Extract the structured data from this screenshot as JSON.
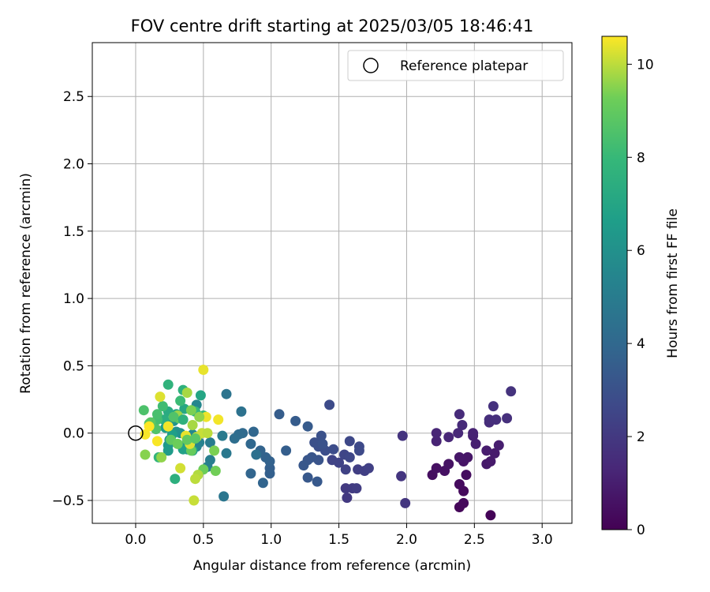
{
  "chart_data": {
    "type": "scatter",
    "title": "FOV centre drift starting at 2025/03/05 18:46:41",
    "xlabel": "Angular distance from reference (arcmin)",
    "ylabel": "Rotation from reference (arcmin)",
    "xlim": [
      -0.32,
      3.22
    ],
    "ylim": [
      -0.67,
      2.9
    ],
    "xticks": [
      0.0,
      0.5,
      1.0,
      1.5,
      2.0,
      2.5,
      3.0
    ],
    "xtick_labels": [
      "0.0",
      "0.5",
      "1.0",
      "1.5",
      "2.0",
      "2.5",
      "3.0"
    ],
    "yticks": [
      -0.5,
      0.0,
      0.5,
      1.0,
      1.5,
      2.0,
      2.5
    ],
    "ytick_labels": [
      "−0.5",
      "0.0",
      "0.5",
      "1.0",
      "1.5",
      "2.0",
      "2.5"
    ],
    "grid": true,
    "legend": {
      "placement": "top-right",
      "entries": [
        "Reference platepar"
      ]
    },
    "colorbar": {
      "label": "Hours from first FF file",
      "colormap": "viridis",
      "range": [
        0,
        10.6
      ],
      "ticks": [
        0,
        2,
        4,
        6,
        8,
        10
      ],
      "tick_labels": [
        "0",
        "2",
        "4",
        "6",
        "8",
        "10"
      ]
    },
    "reference": {
      "x": 0.0,
      "y": 0.0
    },
    "points": [
      [
        2.62,
        -0.61,
        0.1
      ],
      [
        2.39,
        -0.55,
        0.2
      ],
      [
        2.42,
        -0.52,
        0.25
      ],
      [
        2.42,
        -0.43,
        0.3
      ],
      [
        2.39,
        -0.38,
        0.35
      ],
      [
        2.44,
        -0.31,
        0.4
      ],
      [
        2.19,
        -0.31,
        0.45
      ],
      [
        2.22,
        -0.26,
        0.5
      ],
      [
        2.28,
        -0.28,
        0.55
      ],
      [
        2.31,
        -0.23,
        0.6
      ],
      [
        2.42,
        -0.21,
        0.65
      ],
      [
        2.45,
        -0.18,
        0.7
      ],
      [
        2.39,
        -0.18,
        0.75
      ],
      [
        2.59,
        -0.23,
        0.8
      ],
      [
        2.62,
        -0.21,
        0.85
      ],
      [
        2.65,
        -0.15,
        0.9
      ],
      [
        2.59,
        -0.13,
        0.95
      ],
      [
        2.68,
        -0.09,
        1.0
      ],
      [
        2.51,
        -0.08,
        1.05
      ],
      [
        2.49,
        -0.02,
        1.1
      ],
      [
        2.49,
        0.0,
        1.15
      ],
      [
        2.22,
        -0.06,
        1.2
      ],
      [
        2.22,
        0.0,
        1.25
      ],
      [
        2.31,
        -0.03,
        1.3
      ],
      [
        2.38,
        0.0,
        1.35
      ],
      [
        2.41,
        0.06,
        1.4
      ],
      [
        2.39,
        0.14,
        1.45
      ],
      [
        2.61,
        0.08,
        1.5
      ],
      [
        2.61,
        0.1,
        1.55
      ],
      [
        2.66,
        0.1,
        1.6
      ],
      [
        2.74,
        0.11,
        1.65
      ],
      [
        2.64,
        0.2,
        1.7
      ],
      [
        2.77,
        0.31,
        1.75
      ],
      [
        1.97,
        -0.02,
        1.8
      ],
      [
        1.96,
        -0.32,
        1.85
      ],
      [
        1.99,
        -0.52,
        1.9
      ],
      [
        1.56,
        -0.48,
        2.0
      ],
      [
        1.55,
        -0.41,
        2.05
      ],
      [
        1.6,
        -0.41,
        2.1
      ],
      [
        1.63,
        -0.41,
        2.15
      ],
      [
        1.64,
        -0.27,
        2.2
      ],
      [
        1.69,
        -0.28,
        2.25
      ],
      [
        1.72,
        -0.26,
        2.3
      ],
      [
        1.55,
        -0.27,
        2.35
      ],
      [
        1.5,
        -0.22,
        2.4
      ],
      [
        1.45,
        -0.2,
        2.45
      ],
      [
        1.54,
        -0.16,
        2.5
      ],
      [
        1.58,
        -0.18,
        2.55
      ],
      [
        1.58,
        -0.06,
        2.6
      ],
      [
        1.65,
        -0.1,
        2.65
      ],
      [
        1.65,
        -0.13,
        2.7
      ],
      [
        1.43,
        0.21,
        2.75
      ],
      [
        1.46,
        -0.12,
        2.8
      ],
      [
        1.4,
        -0.13,
        2.85
      ],
      [
        1.35,
        -0.1,
        2.9
      ],
      [
        1.32,
        -0.07,
        2.95
      ],
      [
        1.37,
        -0.02,
        3.0
      ],
      [
        1.38,
        -0.08,
        3.05
      ],
      [
        1.35,
        -0.2,
        3.1
      ],
      [
        1.3,
        -0.18,
        3.15
      ],
      [
        1.27,
        -0.2,
        3.2
      ],
      [
        1.24,
        -0.24,
        3.25
      ],
      [
        1.27,
        -0.33,
        3.3
      ],
      [
        1.34,
        -0.36,
        3.35
      ],
      [
        1.27,
        0.05,
        3.4
      ],
      [
        1.18,
        0.09,
        3.45
      ],
      [
        1.06,
        0.14,
        3.5
      ],
      [
        1.11,
        -0.13,
        3.55
      ],
      [
        0.99,
        -0.26,
        3.6
      ],
      [
        0.99,
        -0.3,
        3.65
      ],
      [
        0.99,
        -0.21,
        3.7
      ],
      [
        0.96,
        -0.18,
        3.75
      ],
      [
        0.92,
        -0.13,
        3.8
      ],
      [
        0.94,
        -0.37,
        3.85
      ],
      [
        0.85,
        -0.3,
        3.9
      ],
      [
        0.87,
        0.01,
        3.95
      ],
      [
        0.85,
        -0.08,
        4.0
      ],
      [
        0.79,
        0.0,
        4.1
      ],
      [
        0.76,
        -0.01,
        4.2
      ],
      [
        0.73,
        -0.04,
        4.3
      ],
      [
        0.89,
        -0.16,
        4.4
      ],
      [
        0.78,
        0.16,
        4.5
      ],
      [
        0.67,
        0.29,
        4.6
      ],
      [
        0.65,
        -0.47,
        4.7
      ],
      [
        0.67,
        -0.15,
        4.8
      ],
      [
        0.64,
        -0.02,
        4.9
      ],
      [
        0.55,
        -0.07,
        5.0
      ],
      [
        0.55,
        -0.2,
        5.1
      ],
      [
        0.53,
        -0.25,
        5.2
      ],
      [
        0.47,
        -0.07,
        5.3
      ],
      [
        0.45,
        -0.1,
        5.4
      ],
      [
        0.45,
        0.21,
        5.5
      ],
      [
        0.42,
        -0.01,
        5.6
      ],
      [
        0.4,
        -0.05,
        5.7
      ],
      [
        0.38,
        -0.12,
        5.8
      ],
      [
        0.35,
        -0.1,
        5.9
      ],
      [
        0.33,
        0.0,
        6.0
      ],
      [
        0.3,
        0.01,
        6.1
      ],
      [
        0.28,
        0.09,
        6.2
      ],
      [
        0.25,
        -0.05,
        6.3
      ],
      [
        0.24,
        -0.09,
        6.4
      ],
      [
        0.24,
        -0.13,
        6.5
      ],
      [
        0.22,
        0.04,
        6.6
      ],
      [
        0.27,
        -0.01,
        6.7
      ],
      [
        0.35,
        -0.12,
        6.8
      ],
      [
        0.42,
        -0.13,
        6.9
      ],
      [
        0.48,
        0.28,
        7.0
      ],
      [
        0.36,
        0.18,
        7.1
      ],
      [
        0.3,
        0.14,
        7.2
      ],
      [
        0.24,
        0.16,
        7.3
      ],
      [
        0.21,
        0.1,
        7.4
      ],
      [
        0.29,
        -0.34,
        7.5
      ],
      [
        0.35,
        0.32,
        7.6
      ],
      [
        0.24,
        0.36,
        7.7
      ],
      [
        0.17,
        -0.18,
        7.8
      ],
      [
        0.44,
        0.16,
        7.9
      ],
      [
        0.5,
        0.13,
        8.0
      ],
      [
        0.33,
        0.24,
        8.1
      ],
      [
        0.2,
        0.2,
        8.2
      ],
      [
        0.16,
        0.1,
        8.3
      ],
      [
        0.16,
        0.14,
        8.4
      ],
      [
        0.06,
        0.17,
        8.5
      ],
      [
        0.15,
        0.03,
        8.6
      ],
      [
        0.1,
        0.07,
        8.7
      ],
      [
        0.11,
        0.08,
        8.8
      ],
      [
        0.32,
        0.11,
        8.9
      ],
      [
        0.26,
        -0.05,
        9.0
      ],
      [
        0.41,
        -0.13,
        9.1
      ],
      [
        0.5,
        -0.27,
        9.2
      ],
      [
        0.59,
        -0.28,
        9.3
      ],
      [
        0.58,
        -0.13,
        9.4
      ],
      [
        0.07,
        -0.16,
        9.5
      ],
      [
        0.19,
        -0.18,
        9.6
      ],
      [
        0.31,
        0.13,
        9.7
      ],
      [
        0.38,
        0.3,
        9.8
      ],
      [
        0.46,
        -0.31,
        9.9
      ],
      [
        0.44,
        -0.34,
        10.0
      ],
      [
        0.43,
        -0.5,
        10.1
      ],
      [
        0.33,
        -0.26,
        10.2
      ],
      [
        0.18,
        0.27,
        10.3
      ],
      [
        0.5,
        0.47,
        10.4
      ],
      [
        0.52,
        0.12,
        10.45
      ],
      [
        0.61,
        0.1,
        10.5
      ],
      [
        0.07,
        -0.01,
        10.55
      ],
      [
        0.1,
        0.05,
        10.6
      ],
      [
        0.16,
        -0.06,
        10.55
      ],
      [
        0.24,
        0.05,
        10.5
      ],
      [
        0.37,
        -0.02,
        10.4
      ],
      [
        0.4,
        -0.08,
        10.3
      ],
      [
        0.45,
        -0.03,
        10.2
      ],
      [
        0.49,
        0.0,
        10.1
      ],
      [
        0.53,
        0.0,
        10.0
      ],
      [
        0.42,
        0.06,
        9.8
      ],
      [
        0.47,
        0.12,
        9.6
      ],
      [
        0.41,
        0.17,
        9.4
      ],
      [
        0.31,
        -0.08,
        9.2
      ],
      [
        0.38,
        -0.05,
        9.0
      ],
      [
        0.44,
        -0.04,
        8.8
      ],
      [
        0.28,
        0.12,
        8.6
      ],
      [
        0.35,
        0.1,
        7.6
      ]
    ]
  }
}
